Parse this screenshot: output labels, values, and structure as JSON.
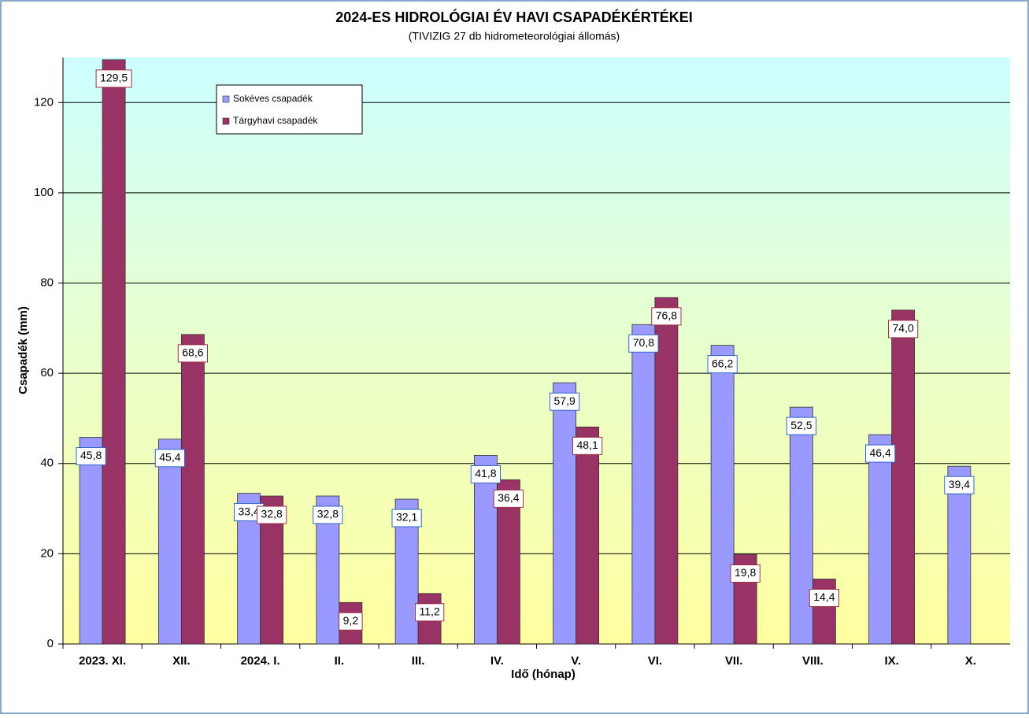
{
  "chart_data": {
    "type": "bar",
    "title": "2024-ES HIDROLÓGIAI  ÉV HAVI  CSAPADÉKÉRTÉKEI",
    "subtitle": "(TIVIZIG  27 db hidrometeorológiai állomás)",
    "x_label": "Idő (hónap)",
    "y_label": "Csapadék (mm)",
    "categories": [
      "2023. XI.",
      "XII.",
      "2024. I.",
      "II.",
      "III.",
      "IV.",
      "V.",
      "VI.",
      "VII.",
      "VIII.",
      "IX.",
      "X."
    ],
    "series": [
      {
        "name": "Sokéves csapadék",
        "color": "#9999ff",
        "label_border": "#3366cc",
        "values": [
          45.8,
          45.4,
          33.4,
          32.8,
          32.1,
          41.8,
          57.9,
          70.8,
          66.2,
          52.5,
          46.4,
          39.4
        ],
        "value_labels": [
          "45,8",
          "45,4",
          "33,4",
          "32,8",
          "32,1",
          "41,8",
          "57,9",
          "70,8",
          "66,2",
          "52,5",
          "46,4",
          "39,4"
        ]
      },
      {
        "name": "Tárgyhavi csapadék",
        "color": "#993366",
        "label_border": "#993344",
        "values": [
          129.5,
          68.6,
          32.8,
          9.2,
          11.2,
          36.4,
          48.1,
          76.8,
          19.8,
          14.4,
          74.0,
          null
        ],
        "value_labels": [
          "129,5",
          "68,6",
          "32,8",
          "9,2",
          "11,2",
          "36,4",
          "48,1",
          "76,8",
          "19,8",
          "14,4",
          "74,0",
          null
        ]
      }
    ],
    "ylim": [
      0,
      130
    ],
    "yticks": [
      0,
      20,
      40,
      60,
      80,
      100,
      120
    ],
    "grid": true
  }
}
